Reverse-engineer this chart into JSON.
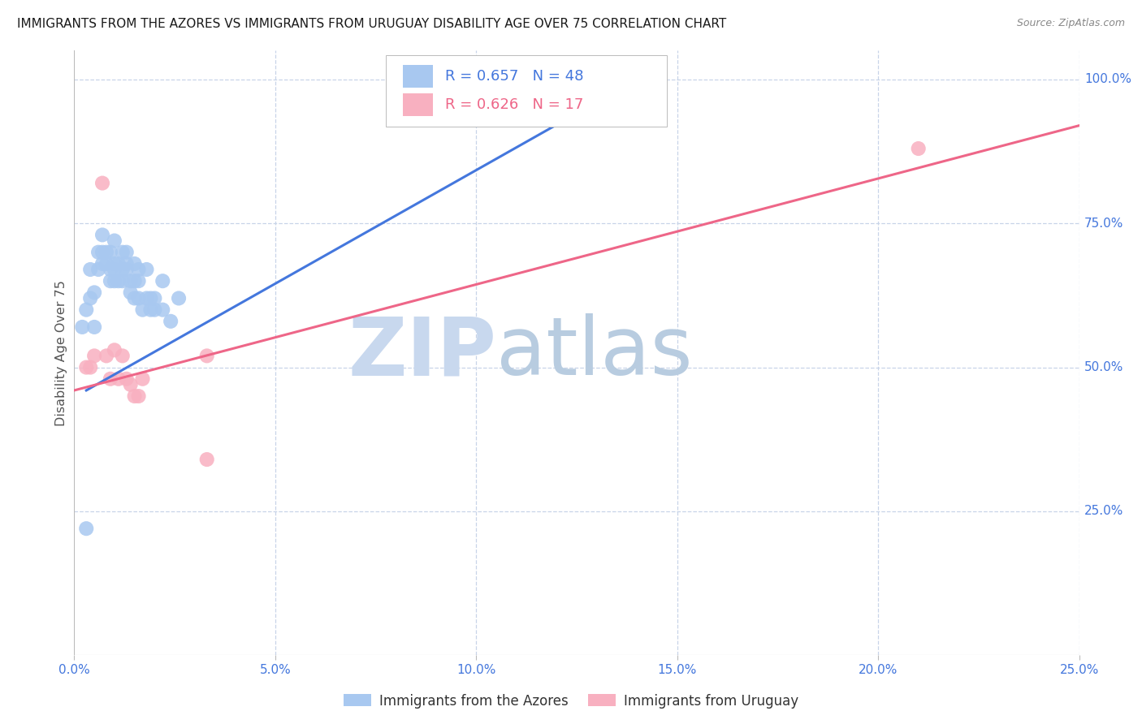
{
  "title": "IMMIGRANTS FROM THE AZORES VS IMMIGRANTS FROM URUGUAY DISABILITY AGE OVER 75 CORRELATION CHART",
  "source": "Source: ZipAtlas.com",
  "ylabel": "Disability Age Over 75",
  "xlim": [
    0.0,
    0.25
  ],
  "ylim": [
    0.0,
    1.05
  ],
  "xtick_labels": [
    "0.0%",
    "5.0%",
    "10.0%",
    "15.0%",
    "20.0%",
    "25.0%"
  ],
  "xtick_values": [
    0.0,
    0.05,
    0.1,
    0.15,
    0.2,
    0.25
  ],
  "ytick_labels": [
    "25.0%",
    "50.0%",
    "75.0%",
    "100.0%"
  ],
  "ytick_values": [
    0.25,
    0.5,
    0.75,
    1.0
  ],
  "legend_azores_label": "Immigrants from the Azores",
  "legend_uruguay_label": "Immigrants from Uruguay",
  "legend_azores_R": "0.657",
  "legend_azores_N": "48",
  "legend_uruguay_R": "0.626",
  "legend_uruguay_N": "17",
  "azores_color": "#a8c8f0",
  "uruguay_color": "#f8b0c0",
  "azores_line_color": "#4477dd",
  "uruguay_line_color": "#ee6688",
  "text_color_blue": "#4477dd",
  "label_color": "#333333",
  "background_color": "#ffffff",
  "grid_color": "#c8d4e8",
  "watermark_zip_color": "#c8d8ee",
  "watermark_atlas_color": "#b8cce0",
  "azores_x": [
    0.002,
    0.003,
    0.004,
    0.004,
    0.005,
    0.005,
    0.006,
    0.006,
    0.007,
    0.007,
    0.007,
    0.008,
    0.008,
    0.009,
    0.009,
    0.009,
    0.01,
    0.01,
    0.01,
    0.01,
    0.011,
    0.011,
    0.012,
    0.012,
    0.012,
    0.013,
    0.013,
    0.013,
    0.014,
    0.014,
    0.015,
    0.015,
    0.015,
    0.016,
    0.016,
    0.016,
    0.017,
    0.018,
    0.018,
    0.019,
    0.019,
    0.02,
    0.02,
    0.022,
    0.022,
    0.024,
    0.026,
    0.003
  ],
  "azores_y": [
    0.57,
    0.6,
    0.62,
    0.67,
    0.57,
    0.63,
    0.67,
    0.7,
    0.68,
    0.7,
    0.73,
    0.68,
    0.7,
    0.65,
    0.67,
    0.7,
    0.65,
    0.67,
    0.68,
    0.72,
    0.65,
    0.68,
    0.65,
    0.67,
    0.7,
    0.67,
    0.68,
    0.7,
    0.63,
    0.65,
    0.62,
    0.65,
    0.68,
    0.62,
    0.65,
    0.67,
    0.6,
    0.62,
    0.67,
    0.6,
    0.62,
    0.6,
    0.62,
    0.6,
    0.65,
    0.58,
    0.62,
    0.22
  ],
  "uruguay_x": [
    0.003,
    0.004,
    0.005,
    0.007,
    0.008,
    0.009,
    0.01,
    0.011,
    0.012,
    0.013,
    0.014,
    0.015,
    0.016,
    0.017,
    0.033,
    0.033,
    0.21
  ],
  "uruguay_y": [
    0.5,
    0.5,
    0.52,
    0.82,
    0.52,
    0.48,
    0.53,
    0.48,
    0.52,
    0.48,
    0.47,
    0.45,
    0.45,
    0.48,
    0.34,
    0.52,
    0.88
  ],
  "azores_trend_x": [
    0.003,
    0.145
  ],
  "azores_trend_y": [
    0.46,
    1.02
  ],
  "uruguay_trend_x": [
    0.0,
    0.25
  ],
  "uruguay_trend_y": [
    0.46,
    0.92
  ]
}
